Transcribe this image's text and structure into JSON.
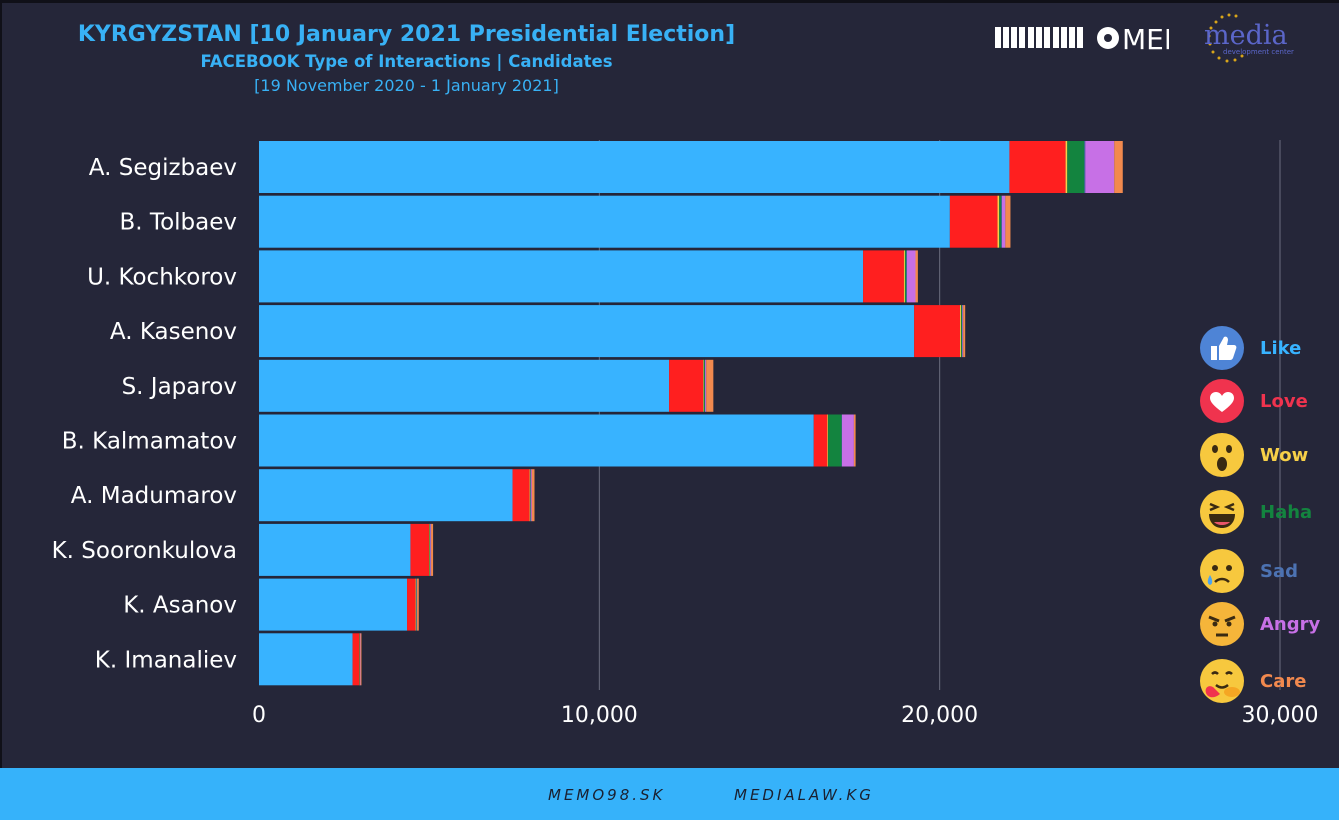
{
  "header": {
    "title": "KYRGYZSTAN [10 January 2021 Presidential Election]",
    "subtitle": "FACEBOOK Type of Interactions | Candidates",
    "period": "[19 November 2020 - 1 January 2021]",
    "logo_memo": "MEMO98",
    "logo_media": "media",
    "logo_media_sub": "development center"
  },
  "footer": {
    "link1": "MEMO98.SK",
    "link2": "MEDIALAW.KG"
  },
  "legend": [
    {
      "name": "Like",
      "color": "#38b3ff",
      "icon": "like-icon"
    },
    {
      "name": "Love",
      "color": "#f0334e",
      "icon": "love-icon"
    },
    {
      "name": "Wow",
      "color": "#f7d048",
      "icon": "wow-icon"
    },
    {
      "name": "Haha",
      "color": "#13843f",
      "icon": "haha-icon"
    },
    {
      "name": "Sad",
      "color": "#4c72b2",
      "icon": "sad-icon"
    },
    {
      "name": "Angry",
      "color": "#c770e6",
      "icon": "angry-icon"
    },
    {
      "name": "Care",
      "color": "#f2894e",
      "icon": "care-icon"
    }
  ],
  "chart_data": {
    "type": "bar",
    "orientation": "horizontal",
    "stacked": true,
    "categories": [
      "A. Segizbaev",
      "B. Tolbaev",
      "U. Kochkorov",
      "A. Kasenov",
      "S. Japarov",
      "B. Kalmamatov",
      "A. Madumarov",
      "K. Sooronkulova",
      "K. Asanov",
      "K. Imanaliev"
    ],
    "series": [
      {
        "name": "Like",
        "color": "#38b3ff",
        "values": [
          22050,
          20300,
          17750,
          19250,
          12050,
          16300,
          7450,
          4450,
          4350,
          2750
        ]
      },
      {
        "name": "Love",
        "color": "#ff1f1f",
        "values": [
          1650,
          1400,
          1200,
          1350,
          1000,
          400,
          500,
          550,
          250,
          200
        ]
      },
      {
        "name": "Wow",
        "color": "#f7d048",
        "values": [
          50,
          50,
          30,
          30,
          20,
          20,
          10,
          10,
          10,
          5
        ]
      },
      {
        "name": "Haha",
        "color": "#13843f",
        "values": [
          500,
          60,
          40,
          30,
          30,
          400,
          20,
          20,
          20,
          10
        ]
      },
      {
        "name": "Sad",
        "color": "#4c72b2",
        "values": [
          30,
          20,
          20,
          10,
          10,
          10,
          5,
          5,
          5,
          5
        ]
      },
      {
        "name": "Angry",
        "color": "#c770e6",
        "values": [
          850,
          100,
          250,
          20,
          30,
          350,
          30,
          20,
          10,
          10
        ]
      },
      {
        "name": "Care",
        "color": "#f2894e",
        "values": [
          250,
          150,
          70,
          60,
          210,
          50,
          80,
          60,
          50,
          30
        ]
      }
    ],
    "xlim": [
      0,
      30000
    ],
    "xticks": [
      0,
      10000,
      20000,
      30000
    ],
    "xtick_labels": [
      "0",
      "10,000",
      "20,000",
      "30,000"
    ],
    "grid": true,
    "legend_position": "right"
  }
}
